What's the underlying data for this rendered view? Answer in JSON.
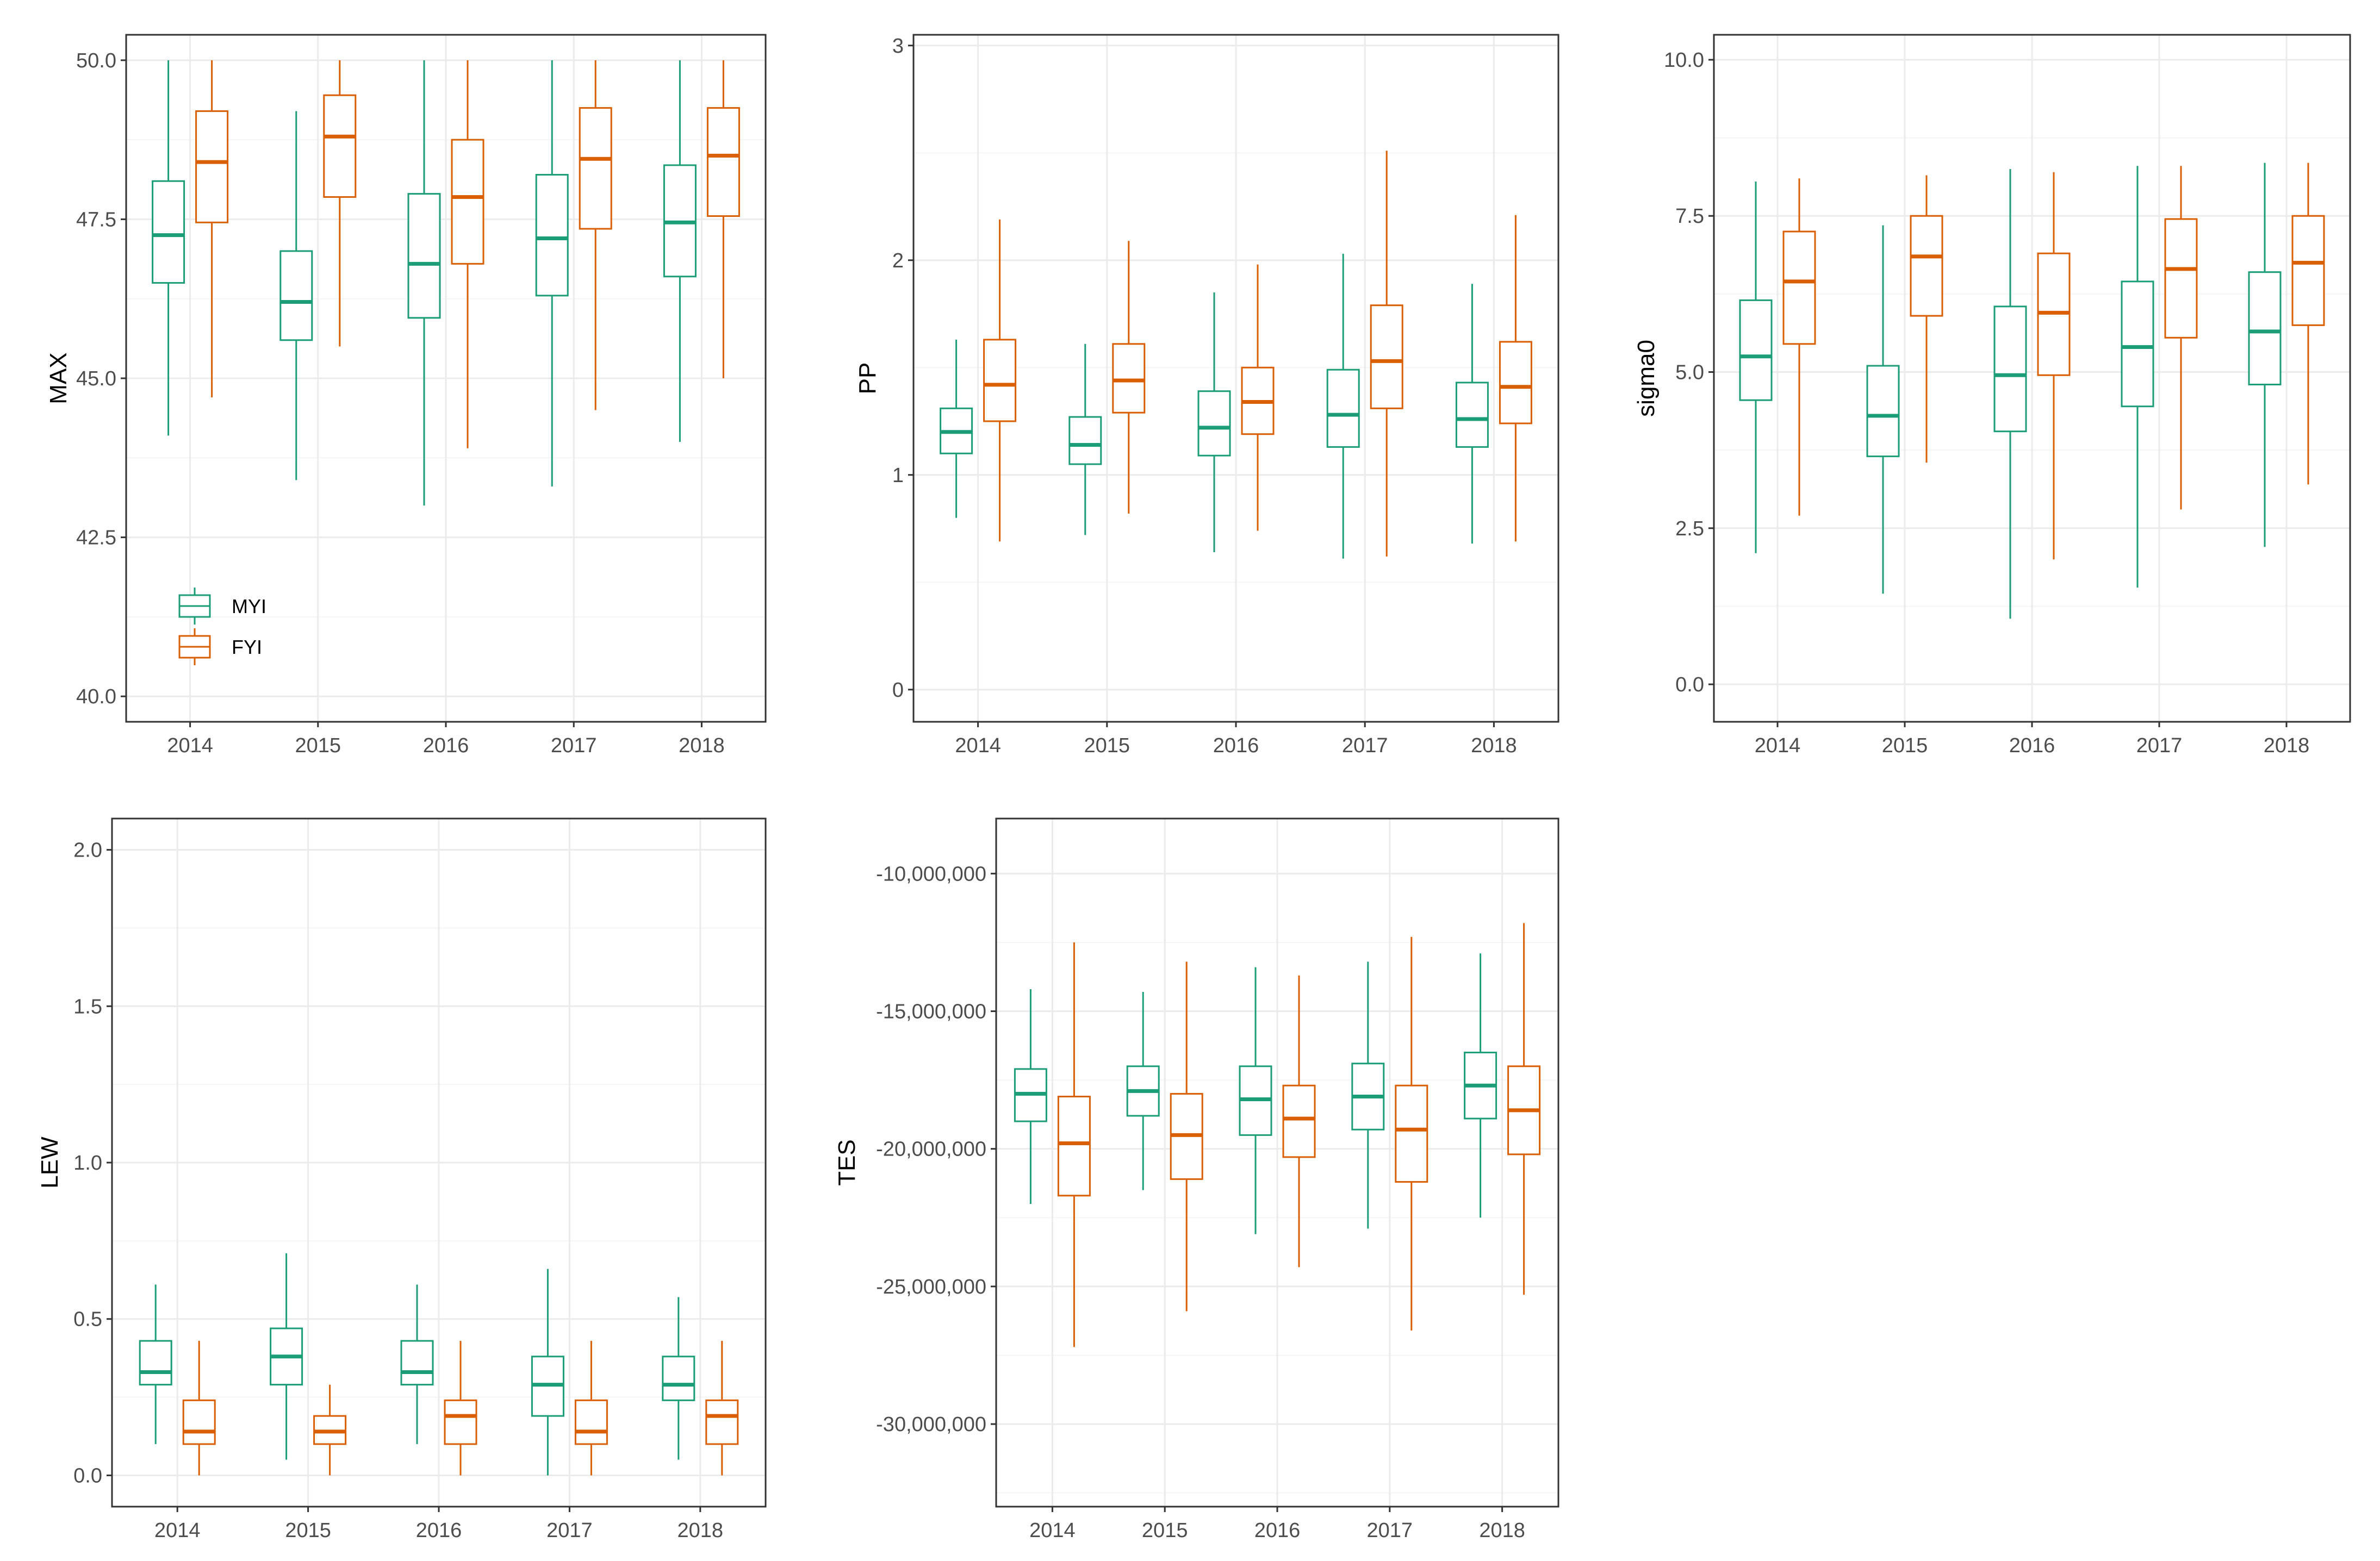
{
  "colors": {
    "MYI": "#1b9e77",
    "FYI": "#d95f02",
    "grid_major": "#ebebeb",
    "grid_minor": "#f5f5f5",
    "frame": "#333333"
  },
  "legend": {
    "entries": [
      "MYI",
      "FYI"
    ],
    "placement": "bottom-left of first panel"
  },
  "chart_data": [
    {
      "type": "boxplot",
      "ylabel": "MAX",
      "categories": [
        "2014",
        "2015",
        "2016",
        "2017",
        "2018"
      ],
      "ylim": [
        39.6,
        50.4
      ],
      "yticks": [
        40.0,
        42.5,
        45.0,
        47.5,
        50.0
      ],
      "ytick_labels": [
        "40.0",
        "42.5",
        "45.0",
        "47.5",
        "50.0"
      ],
      "legend": true,
      "series": [
        {
          "name": "MYI",
          "boxes": [
            {
              "min": 44.1,
              "q1": 46.5,
              "median": 47.25,
              "q3": 48.1,
              "max": 50.0
            },
            {
              "min": 43.4,
              "q1": 45.6,
              "median": 46.2,
              "q3": 47.0,
              "max": 49.2
            },
            {
              "min": 43.0,
              "q1": 45.95,
              "median": 46.8,
              "q3": 47.9,
              "max": 50.0
            },
            {
              "min": 43.3,
              "q1": 46.3,
              "median": 47.2,
              "q3": 48.2,
              "max": 50.0
            },
            {
              "min": 44.0,
              "q1": 46.6,
              "median": 47.45,
              "q3": 48.35,
              "max": 50.0
            }
          ]
        },
        {
          "name": "FYI",
          "boxes": [
            {
              "min": 44.7,
              "q1": 47.45,
              "median": 48.4,
              "q3": 49.2,
              "max": 50.0
            },
            {
              "min": 45.5,
              "q1": 47.85,
              "median": 48.8,
              "q3": 49.45,
              "max": 50.0
            },
            {
              "min": 43.9,
              "q1": 46.8,
              "median": 47.85,
              "q3": 48.75,
              "max": 50.0
            },
            {
              "min": 44.5,
              "q1": 47.35,
              "median": 48.45,
              "q3": 49.25,
              "max": 50.0
            },
            {
              "min": 45.0,
              "q1": 47.55,
              "median": 48.5,
              "q3": 49.25,
              "max": 50.0
            }
          ]
        }
      ]
    },
    {
      "type": "boxplot",
      "ylabel": "PP",
      "categories": [
        "2014",
        "2015",
        "2016",
        "2017",
        "2018"
      ],
      "ylim": [
        -0.15,
        3.05
      ],
      "yticks": [
        0,
        1,
        2,
        3
      ],
      "ytick_labels": [
        "0",
        "1",
        "2",
        "3"
      ],
      "legend": false,
      "series": [
        {
          "name": "MYI",
          "boxes": [
            {
              "min": 0.8,
              "q1": 1.1,
              "median": 1.2,
              "q3": 1.31,
              "max": 1.63
            },
            {
              "min": 0.72,
              "q1": 1.05,
              "median": 1.14,
              "q3": 1.27,
              "max": 1.61
            },
            {
              "min": 0.64,
              "q1": 1.09,
              "median": 1.22,
              "q3": 1.39,
              "max": 1.85
            },
            {
              "min": 0.61,
              "q1": 1.13,
              "median": 1.28,
              "q3": 1.49,
              "max": 2.03
            },
            {
              "min": 0.68,
              "q1": 1.13,
              "median": 1.26,
              "q3": 1.43,
              "max": 1.89
            }
          ]
        },
        {
          "name": "FYI",
          "boxes": [
            {
              "min": 0.69,
              "q1": 1.25,
              "median": 1.42,
              "q3": 1.63,
              "max": 2.19
            },
            {
              "min": 0.82,
              "q1": 1.29,
              "median": 1.44,
              "q3": 1.61,
              "max": 2.09
            },
            {
              "min": 0.74,
              "q1": 1.19,
              "median": 1.34,
              "q3": 1.5,
              "max": 1.98
            },
            {
              "min": 0.62,
              "q1": 1.31,
              "median": 1.53,
              "q3": 1.79,
              "max": 2.51
            },
            {
              "min": 0.69,
              "q1": 1.24,
              "median": 1.41,
              "q3": 1.62,
              "max": 2.21
            }
          ]
        }
      ]
    },
    {
      "type": "boxplot",
      "ylabel": "sigma0",
      "categories": [
        "2014",
        "2015",
        "2016",
        "2017",
        "2018"
      ],
      "ylim": [
        -0.6,
        10.4
      ],
      "yticks": [
        0.0,
        2.5,
        5.0,
        7.5,
        10.0
      ],
      "ytick_labels": [
        "0.0",
        "2.5",
        "5.0",
        "7.5",
        "10.0"
      ],
      "legend": false,
      "series": [
        {
          "name": "MYI",
          "boxes": [
            {
              "min": 2.1,
              "q1": 4.55,
              "median": 5.25,
              "q3": 6.15,
              "max": 8.05
            },
            {
              "min": 1.45,
              "q1": 3.65,
              "median": 4.3,
              "q3": 5.1,
              "max": 7.35
            },
            {
              "min": 1.05,
              "q1": 4.05,
              "median": 4.95,
              "q3": 6.05,
              "max": 8.25
            },
            {
              "min": 1.55,
              "q1": 4.45,
              "median": 5.4,
              "q3": 6.45,
              "max": 8.3
            },
            {
              "min": 2.2,
              "q1": 4.8,
              "median": 5.65,
              "q3": 6.6,
              "max": 8.35
            }
          ]
        },
        {
          "name": "FYI",
          "boxes": [
            {
              "min": 2.7,
              "q1": 5.45,
              "median": 6.45,
              "q3": 7.25,
              "max": 8.1
            },
            {
              "min": 3.55,
              "q1": 5.9,
              "median": 6.85,
              "q3": 7.5,
              "max": 8.15
            },
            {
              "min": 2.0,
              "q1": 4.95,
              "median": 5.95,
              "q3": 6.9,
              "max": 8.2
            },
            {
              "min": 2.8,
              "q1": 5.55,
              "median": 6.65,
              "q3": 7.45,
              "max": 8.3
            },
            {
              "min": 3.2,
              "q1": 5.75,
              "median": 6.75,
              "q3": 7.5,
              "max": 8.35
            }
          ]
        }
      ]
    },
    {
      "type": "boxplot",
      "ylabel": "LEW",
      "categories": [
        "2014",
        "2015",
        "2016",
        "2017",
        "2018"
      ],
      "ylim": [
        -0.1,
        2.1
      ],
      "yticks": [
        0.0,
        0.5,
        1.0,
        1.5,
        2.0
      ],
      "ytick_labels": [
        "0.0",
        "0.5",
        "1.0",
        "1.5",
        "2.0"
      ],
      "legend": false,
      "series": [
        {
          "name": "MYI",
          "boxes": [
            {
              "min": 0.1,
              "q1": 0.29,
              "median": 0.33,
              "q3": 0.43,
              "max": 0.61
            },
            {
              "min": 0.05,
              "q1": 0.29,
              "median": 0.38,
              "q3": 0.47,
              "max": 0.71
            },
            {
              "min": 0.1,
              "q1": 0.29,
              "median": 0.33,
              "q3": 0.43,
              "max": 0.61
            },
            {
              "min": 0.0,
              "q1": 0.19,
              "median": 0.29,
              "q3": 0.38,
              "max": 0.66
            },
            {
              "min": 0.05,
              "q1": 0.24,
              "median": 0.29,
              "q3": 0.38,
              "max": 0.57
            }
          ]
        },
        {
          "name": "FYI",
          "boxes": [
            {
              "min": 0.0,
              "q1": 0.1,
              "median": 0.14,
              "q3": 0.24,
              "max": 0.43
            },
            {
              "min": 0.0,
              "q1": 0.1,
              "median": 0.14,
              "q3": 0.19,
              "max": 0.29
            },
            {
              "min": 0.0,
              "q1": 0.1,
              "median": 0.19,
              "q3": 0.24,
              "max": 0.43
            },
            {
              "min": 0.0,
              "q1": 0.1,
              "median": 0.14,
              "q3": 0.24,
              "max": 0.43
            },
            {
              "min": 0.0,
              "q1": 0.1,
              "median": 0.19,
              "q3": 0.24,
              "max": 0.43
            }
          ]
        }
      ]
    },
    {
      "type": "boxplot",
      "ylabel": "TES",
      "categories": [
        "2014",
        "2015",
        "2016",
        "2017",
        "2018"
      ],
      "ylim": [
        -33000000,
        -8000000
      ],
      "yticks": [
        -30000000,
        -25000000,
        -20000000,
        -15000000,
        -10000000
      ],
      "ytick_labels": [
        "-30,000,000",
        "-25,000,000",
        "-20,000,000",
        "-15,000,000",
        "-10,000,000"
      ],
      "legend": false,
      "series": [
        {
          "name": "MYI",
          "boxes": [
            {
              "min": -22000000,
              "q1": -19000000,
              "median": -18000000,
              "q3": -17100000,
              "max": -14200000
            },
            {
              "min": -21500000,
              "q1": -18800000,
              "median": -17900000,
              "q3": -17000000,
              "max": -14300000
            },
            {
              "min": -23100000,
              "q1": -19500000,
              "median": -18200000,
              "q3": -17000000,
              "max": -13400000
            },
            {
              "min": -22900000,
              "q1": -19300000,
              "median": -18100000,
              "q3": -16900000,
              "max": -13200000
            },
            {
              "min": -22500000,
              "q1": -18900000,
              "median": -17700000,
              "q3": -16500000,
              "max": -12900000
            }
          ]
        },
        {
          "name": "FYI",
          "boxes": [
            {
              "min": -27200000,
              "q1": -21700000,
              "median": -19800000,
              "q3": -18100000,
              "max": -12500000
            },
            {
              "min": -25900000,
              "q1": -21100000,
              "median": -19500000,
              "q3": -18000000,
              "max": -13200000
            },
            {
              "min": -24300000,
              "q1": -20300000,
              "median": -18900000,
              "q3": -17700000,
              "max": -13700000
            },
            {
              "min": -26600000,
              "q1": -21200000,
              "median": -19300000,
              "q3": -17700000,
              "max": -12300000
            },
            {
              "min": -25300000,
              "q1": -20200000,
              "median": -18600000,
              "q3": -17000000,
              "max": -11800000
            }
          ]
        }
      ]
    }
  ]
}
